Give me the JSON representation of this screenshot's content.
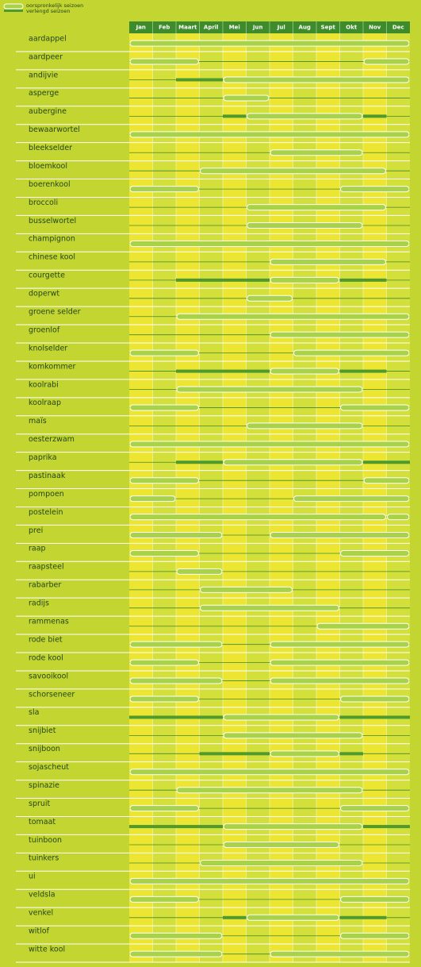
{
  "chart_data": {
    "type": "gantt",
    "legend": [
      {
        "name": "oorspronkelijk seizoen"
      },
      {
        "name": "verlengd seizoen"
      }
    ],
    "categories": [
      "Jan",
      "Feb",
      "Maart",
      "April",
      "Mei",
      "Jun",
      "Jul",
      "Aug",
      "Sept",
      "Okt",
      "Nov",
      "Dec"
    ],
    "xlim": [
      0,
      12
    ],
    "rows": [
      {
        "name": "aardappel",
        "original": [
          [
            0,
            12
          ]
        ],
        "extended": []
      },
      {
        "name": "aardpeer",
        "original": [
          [
            0,
            3
          ],
          [
            10,
            12
          ]
        ],
        "extended": []
      },
      {
        "name": "andijvie",
        "original": [
          [
            4,
            12
          ]
        ],
        "extended": [
          [
            2,
            4
          ]
        ]
      },
      {
        "name": "asperge",
        "original": [
          [
            4,
            6
          ]
        ],
        "extended": []
      },
      {
        "name": "aubergine",
        "original": [
          [
            5,
            10
          ]
        ],
        "extended": [
          [
            4,
            5
          ],
          [
            10,
            11
          ]
        ]
      },
      {
        "name": "bewaarwortel",
        "original": [
          [
            0,
            12
          ]
        ],
        "extended": []
      },
      {
        "name": "bleekselder",
        "original": [
          [
            6,
            10
          ]
        ],
        "extended": []
      },
      {
        "name": "bloemkool",
        "original": [
          [
            3,
            11
          ]
        ],
        "extended": []
      },
      {
        "name": "boerenkool",
        "original": [
          [
            0,
            3
          ],
          [
            9,
            12
          ]
        ],
        "extended": []
      },
      {
        "name": "broccoli",
        "original": [
          [
            5,
            11
          ]
        ],
        "extended": []
      },
      {
        "name": "busselwortel",
        "original": [
          [
            5,
            10
          ]
        ],
        "extended": []
      },
      {
        "name": "champignon",
        "original": [
          [
            0,
            12
          ]
        ],
        "extended": []
      },
      {
        "name": "chinese kool",
        "original": [
          [
            6,
            11
          ]
        ],
        "extended": []
      },
      {
        "name": "courgette",
        "original": [
          [
            6,
            9
          ]
        ],
        "extended": [
          [
            2,
            6
          ],
          [
            9,
            11
          ]
        ]
      },
      {
        "name": "doperwt",
        "original": [
          [
            5,
            7
          ]
        ],
        "extended": []
      },
      {
        "name": "groene selder",
        "original": [
          [
            2,
            12
          ]
        ],
        "extended": []
      },
      {
        "name": "groenlof",
        "original": [
          [
            6,
            12
          ]
        ],
        "extended": []
      },
      {
        "name": "knolselder",
        "original": [
          [
            0,
            3
          ],
          [
            7,
            12
          ]
        ],
        "extended": []
      },
      {
        "name": "komkommer",
        "original": [
          [
            6,
            9
          ]
        ],
        "extended": [
          [
            2,
            6
          ],
          [
            9,
            11
          ]
        ]
      },
      {
        "name": "koolrabi",
        "original": [
          [
            2,
            10
          ]
        ],
        "extended": []
      },
      {
        "name": "koolraap",
        "original": [
          [
            0,
            3
          ],
          [
            9,
            12
          ]
        ],
        "extended": []
      },
      {
        "name": "maïs",
        "original": [
          [
            5,
            10
          ]
        ],
        "extended": []
      },
      {
        "name": "oesterzwam",
        "original": [
          [
            0,
            12
          ]
        ],
        "extended": []
      },
      {
        "name": "paprika",
        "original": [
          [
            4,
            10
          ]
        ],
        "extended": [
          [
            2,
            4
          ],
          [
            10,
            12
          ]
        ]
      },
      {
        "name": "pastinaak",
        "original": [
          [
            0,
            3
          ],
          [
            10,
            12
          ]
        ],
        "extended": []
      },
      {
        "name": "pompoen",
        "original": [
          [
            0,
            2
          ],
          [
            7,
            12
          ]
        ],
        "extended": []
      },
      {
        "name": "postelein",
        "original": [
          [
            0,
            11
          ],
          [
            11,
            12
          ]
        ],
        "extended": []
      },
      {
        "name": "prei",
        "original": [
          [
            0,
            4
          ],
          [
            6,
            12
          ]
        ],
        "extended": []
      },
      {
        "name": "raap",
        "original": [
          [
            0,
            3
          ],
          [
            9,
            12
          ]
        ],
        "extended": []
      },
      {
        "name": "raapsteel",
        "original": [
          [
            2,
            4
          ]
        ],
        "extended": []
      },
      {
        "name": "rabarber",
        "original": [
          [
            3,
            7
          ]
        ],
        "extended": []
      },
      {
        "name": "radijs",
        "original": [
          [
            3,
            9
          ]
        ],
        "extended": []
      },
      {
        "name": "rammenas",
        "original": [
          [
            8,
            12
          ]
        ],
        "extended": []
      },
      {
        "name": "rode biet",
        "original": [
          [
            0,
            4
          ],
          [
            6,
            12
          ]
        ],
        "extended": []
      },
      {
        "name": "rode kool",
        "original": [
          [
            0,
            3
          ],
          [
            6,
            12
          ]
        ],
        "extended": []
      },
      {
        "name": "savooikool",
        "original": [
          [
            0,
            4
          ],
          [
            6,
            12
          ]
        ],
        "extended": []
      },
      {
        "name": "schorseneer",
        "original": [
          [
            0,
            3
          ],
          [
            9,
            12
          ]
        ],
        "extended": []
      },
      {
        "name": "sla",
        "original": [
          [
            4,
            9
          ]
        ],
        "extended": [
          [
            0,
            4
          ],
          [
            9,
            12
          ]
        ]
      },
      {
        "name": "snijbiet",
        "original": [
          [
            4,
            10
          ]
        ],
        "extended": []
      },
      {
        "name": "snijboon",
        "original": [
          [
            6,
            9
          ]
        ],
        "extended": [
          [
            3,
            6
          ],
          [
            9,
            10
          ]
        ]
      },
      {
        "name": "sojascheut",
        "original": [
          [
            0,
            12
          ]
        ],
        "extended": []
      },
      {
        "name": "spinazie",
        "original": [
          [
            2,
            10
          ]
        ],
        "extended": []
      },
      {
        "name": "spruit",
        "original": [
          [
            0,
            3
          ],
          [
            9,
            12
          ]
        ],
        "extended": []
      },
      {
        "name": "tomaat",
        "original": [
          [
            4,
            10
          ]
        ],
        "extended": [
          [
            0,
            4
          ],
          [
            10,
            12
          ]
        ]
      },
      {
        "name": "tuinboon",
        "original": [
          [
            4,
            9
          ]
        ],
        "extended": []
      },
      {
        "name": "tuinkers",
        "original": [
          [
            3,
            10
          ]
        ],
        "extended": []
      },
      {
        "name": "ui",
        "original": [
          [
            0,
            12
          ]
        ],
        "extended": []
      },
      {
        "name": "veldsla",
        "original": [
          [
            0,
            3
          ],
          [
            9,
            12
          ]
        ],
        "extended": []
      },
      {
        "name": "venkel",
        "original": [
          [
            5,
            9
          ]
        ],
        "extended": [
          [
            4,
            5
          ],
          [
            9,
            11
          ]
        ]
      },
      {
        "name": "witlof",
        "original": [
          [
            0,
            4
          ],
          [
            9,
            12
          ]
        ],
        "extended": []
      },
      {
        "name": "witte kool",
        "original": [
          [
            0,
            4
          ],
          [
            6,
            12
          ]
        ],
        "extended": []
      }
    ]
  }
}
